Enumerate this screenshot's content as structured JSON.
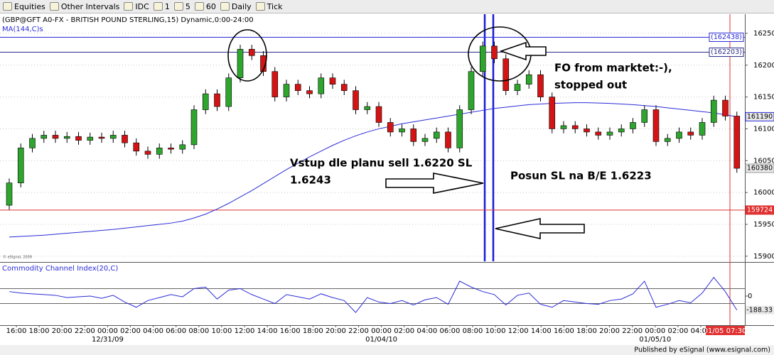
{
  "toolbar": {
    "items": [
      "Equities",
      "Other Intervals",
      "IDC",
      "1",
      "5",
      "60",
      "Daily",
      "Tick"
    ]
  },
  "chart_data": [
    {
      "type": "candlestick",
      "title": "(GBP@GFT A0-FX - BRITISH POUND STERLING,15) Dynamic,0:00-24:00",
      "copyright": "© eSignal, 2009",
      "up_color": "#2ea62e",
      "down_color": "#d41414",
      "open": [
        159800,
        160150,
        160700,
        160850,
        160900,
        160850,
        160880,
        160820,
        160870,
        160850,
        160900,
        160780,
        160650,
        160600,
        160700,
        160680,
        160750,
        161300,
        161550,
        161350,
        161800,
        162250,
        162150,
        161900,
        161500,
        161700,
        161600,
        161550,
        161800,
        161700,
        161600,
        161300,
        161350,
        161100,
        160950,
        161000,
        160800,
        160850,
        160950,
        160700,
        161300,
        161900,
        162300,
        162100,
        161600,
        161700,
        161850,
        161500,
        161000,
        161050,
        161000,
        160950,
        160900,
        160950,
        161000,
        161100,
        161300,
        160800,
        160850,
        160950,
        160900,
        161100,
        161450,
        161200
      ],
      "high": [
        160220,
        160770,
        160920,
        160970,
        160970,
        160950,
        160950,
        160940,
        160940,
        160970,
        160970,
        160850,
        160720,
        160770,
        160770,
        160820,
        161370,
        161620,
        161620,
        161870,
        162320,
        162320,
        162220,
        161970,
        161770,
        161770,
        161670,
        161870,
        161870,
        161770,
        161670,
        161420,
        161420,
        161170,
        161070,
        161070,
        160920,
        161020,
        161020,
        161370,
        161970,
        162370,
        162370,
        162170,
        161770,
        161920,
        161920,
        161570,
        161120,
        161120,
        161070,
        161020,
        161020,
        161070,
        161170,
        161370,
        161370,
        160920,
        161020,
        161020,
        161170,
        161520,
        161520,
        161270
      ],
      "low": [
        159730,
        160080,
        160630,
        160780,
        160780,
        160780,
        160750,
        160750,
        160780,
        160780,
        160710,
        160580,
        160530,
        160530,
        160610,
        160610,
        160680,
        161230,
        161280,
        161280,
        161730,
        162080,
        161830,
        161430,
        161430,
        161530,
        161480,
        161480,
        161630,
        161530,
        161230,
        161230,
        161030,
        160880,
        160880,
        160730,
        160730,
        160780,
        160630,
        160630,
        161230,
        161830,
        162030,
        161530,
        161530,
        161630,
        161430,
        160930,
        160930,
        160930,
        160880,
        160830,
        160830,
        160880,
        160930,
        161030,
        160730,
        160730,
        160780,
        160830,
        160830,
        161030,
        161130,
        160310
      ],
      "close": [
        160150,
        160700,
        160850,
        160900,
        160850,
        160880,
        160820,
        160870,
        160850,
        160900,
        160780,
        160650,
        160600,
        160700,
        160680,
        160750,
        161300,
        161550,
        161350,
        161800,
        162250,
        162150,
        161900,
        161500,
        161700,
        161600,
        161550,
        161800,
        161700,
        161600,
        161300,
        161350,
        161100,
        160950,
        161000,
        160800,
        160850,
        160950,
        160700,
        161300,
        161900,
        162300,
        162100,
        161600,
        161700,
        161850,
        161500,
        161000,
        161050,
        161000,
        160950,
        160900,
        160950,
        161000,
        161100,
        161300,
        160800,
        160850,
        160950,
        160900,
        161100,
        161450,
        161200,
        160380
      ],
      "series": [
        {
          "name": "MA(144,C)s",
          "color": "#2b2bd8",
          "values": [
            159300,
            159310,
            159320,
            159330,
            159345,
            159360,
            159375,
            159390,
            159405,
            159420,
            159440,
            159460,
            159480,
            159500,
            159520,
            159550,
            159600,
            159660,
            159740,
            159830,
            159930,
            160030,
            160140,
            160250,
            160360,
            160460,
            160560,
            160650,
            160740,
            160820,
            160890,
            160950,
            161000,
            161040,
            161080,
            161110,
            161140,
            161170,
            161200,
            161230,
            161260,
            161290,
            161320,
            161340,
            161360,
            161380,
            161390,
            161400,
            161405,
            161410,
            161410,
            161405,
            161400,
            161390,
            161380,
            161365,
            161350,
            161330,
            161310,
            161290,
            161270,
            161250,
            161220,
            161190
          ]
        }
      ],
      "ylim": [
        158920,
        162800
      ],
      "yticks": [
        162500,
        162000,
        161500,
        161000,
        160500,
        160000,
        159500,
        159000
      ],
      "markers": [
        {
          "value": 162438,
          "label": "(162438)",
          "color": "#2b2bd8",
          "line": true
        },
        {
          "value": 162203,
          "label": "(162203)",
          "color": "#2b2b8a",
          "line": true
        },
        {
          "value": 161190,
          "color": "#2b2bd8",
          "line": false
        },
        {
          "value": 160380,
          "color": "#9a9a9a",
          "line": false
        },
        {
          "value": 159724,
          "color": "#e03030",
          "line": true
        }
      ]
    },
    {
      "type": "line",
      "title": "Commodity Channel Index(20,C)",
      "series": [
        {
          "name": "Commodity Channel Index(20,C)",
          "color": "#2b2bd8",
          "values": [
            60,
            40,
            30,
            20,
            10,
            -20,
            -10,
            0,
            -30,
            10,
            -80,
            -150,
            -60,
            -20,
            20,
            -10,
            100,
            120,
            -40,
            80,
            100,
            20,
            -40,
            -100,
            20,
            -10,
            -40,
            30,
            -20,
            -60,
            -220,
            -20,
            -80,
            -100,
            -60,
            -120,
            -50,
            -20,
            -110,
            200,
            120,
            60,
            20,
            -120,
            10,
            40,
            -110,
            -150,
            -60,
            -80,
            -100,
            -110,
            -60,
            -40,
            30,
            200,
            -150,
            -110,
            -60,
            -90,
            40,
            250,
            60,
            -188.33
          ]
        }
      ],
      "ylim": [
        -390,
        428
      ],
      "yticks": [
        0
      ],
      "levels": [
        100,
        -100
      ]
    }
  ],
  "time_axis": {
    "labels": [
      "16:00",
      "18:00",
      "20:00",
      "22:00",
      "00:00",
      "02:00",
      "04:00",
      "06:00",
      "08:00",
      "10:00",
      "12:00",
      "14:00",
      "16:00",
      "18:00",
      "20:00",
      "22:00",
      "00:00",
      "02:00",
      "04:00",
      "06:00",
      "08:00",
      "10:00",
      "12:00",
      "14:00",
      "16:00",
      "18:00",
      "20:00",
      "22:00",
      "00:00",
      "02:00",
      "04:00"
    ],
    "dates": [
      null,
      null,
      null,
      null,
      "12/31/09",
      null,
      null,
      null,
      null,
      null,
      null,
      null,
      null,
      null,
      null,
      null,
      "01/04/10",
      null,
      null,
      null,
      null,
      null,
      null,
      null,
      null,
      null,
      null,
      null,
      "01/05/10",
      null,
      null
    ],
    "current": "01/05 07:30"
  },
  "annotations": {
    "entry": [
      "Vstup dle planu sell 1.6220 SL",
      "1.6243"
    ],
    "move": "Posun SL na B/E 1.6223",
    "exit": [
      "FO from marktet:-),",
      "stopped out"
    ]
  },
  "footer": "Published by eSignal (www.esignal.com)"
}
